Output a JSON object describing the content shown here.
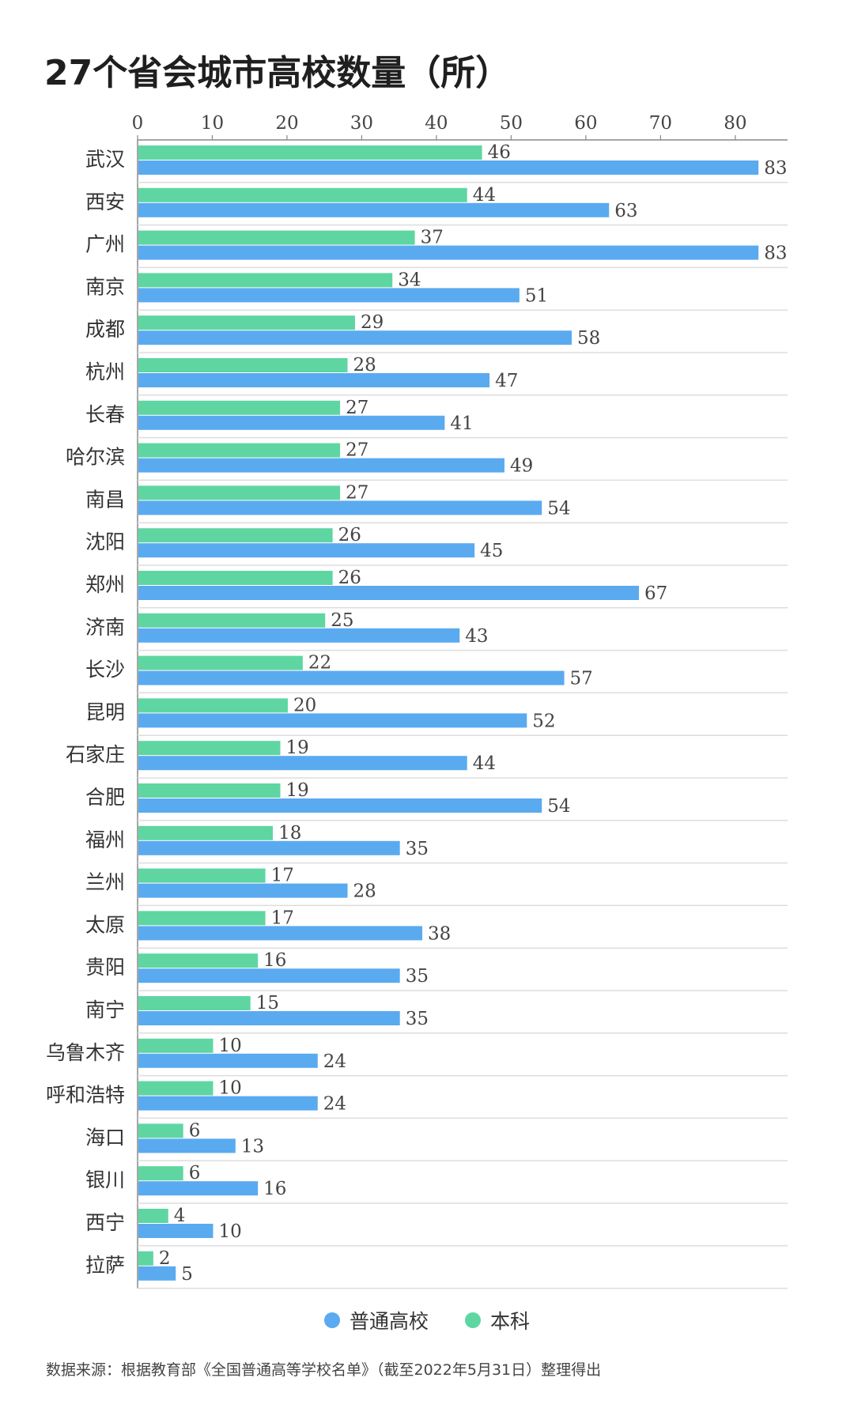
{
  "title": "27个省会城市高校数量（所）",
  "source": "数据来源：根据教育部《全国普通高等学校名单》（截至2022年5月31日）整理得出",
  "colors": {
    "regular": "#5aaaf0",
    "undergrad": "#5fd6a2",
    "axis": "#888888",
    "grid": "#dddddd"
  },
  "chart_data": {
    "type": "bar",
    "orientation": "horizontal",
    "xlim": [
      0,
      87
    ],
    "xticks": [
      0,
      10,
      20,
      30,
      40,
      50,
      60,
      70,
      80
    ],
    "xaxis_position": "top",
    "grid": true,
    "legend_position": "bottom",
    "categories": [
      "武汉",
      "西安",
      "广州",
      "南京",
      "成都",
      "杭州",
      "长春",
      "哈尔滨",
      "南昌",
      "沈阳",
      "郑州",
      "济南",
      "长沙",
      "昆明",
      "石家庄",
      "合肥",
      "福州",
      "兰州",
      "太原",
      "贵阳",
      "南宁",
      "乌鲁木齐",
      "呼和浩特",
      "海口",
      "银川",
      "西宁",
      "拉萨"
    ],
    "series": [
      {
        "name": "本科",
        "values": [
          46,
          44,
          37,
          34,
          29,
          28,
          27,
          27,
          27,
          26,
          26,
          25,
          22,
          20,
          19,
          19,
          18,
          17,
          17,
          16,
          15,
          10,
          10,
          6,
          6,
          4,
          2
        ]
      },
      {
        "name": "普通高校",
        "values": [
          83,
          63,
          83,
          51,
          58,
          47,
          41,
          49,
          54,
          45,
          67,
          43,
          57,
          52,
          44,
          54,
          35,
          28,
          38,
          35,
          35,
          24,
          24,
          13,
          16,
          10,
          5
        ]
      }
    ]
  },
  "legend": [
    {
      "label": "普通高校",
      "key": "regular"
    },
    {
      "label": "本科",
      "key": "undergrad"
    }
  ]
}
